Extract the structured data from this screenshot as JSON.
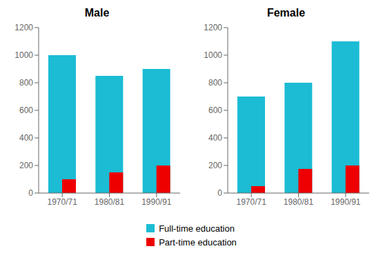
{
  "chart_data": [
    {
      "type": "bar",
      "title": "Male",
      "categories": [
        "1970/71",
        "1980/81",
        "1990/91"
      ],
      "series": [
        {
          "name": "Full-time education",
          "color": "#1BBCD4",
          "values": [
            1000,
            850,
            900
          ]
        },
        {
          "name": "Part-time education",
          "color": "#EE0000",
          "values": [
            100,
            150,
            200
          ]
        }
      ],
      "ylim": [
        0,
        1200
      ],
      "yticks": [
        0,
        200,
        400,
        600,
        800,
        1000,
        1200
      ],
      "grid": false
    },
    {
      "type": "bar",
      "title": "Female",
      "categories": [
        "1970/71",
        "1980/81",
        "1990/91"
      ],
      "series": [
        {
          "name": "Full-time education",
          "color": "#1BBCD4",
          "values": [
            700,
            800,
            1100
          ]
        },
        {
          "name": "Part-time education",
          "color": "#EE0000",
          "values": [
            50,
            175,
            200
          ]
        }
      ],
      "ylim": [
        0,
        1200
      ],
      "yticks": [
        0,
        200,
        400,
        600,
        800,
        1000,
        1200
      ],
      "grid": false
    }
  ]
}
